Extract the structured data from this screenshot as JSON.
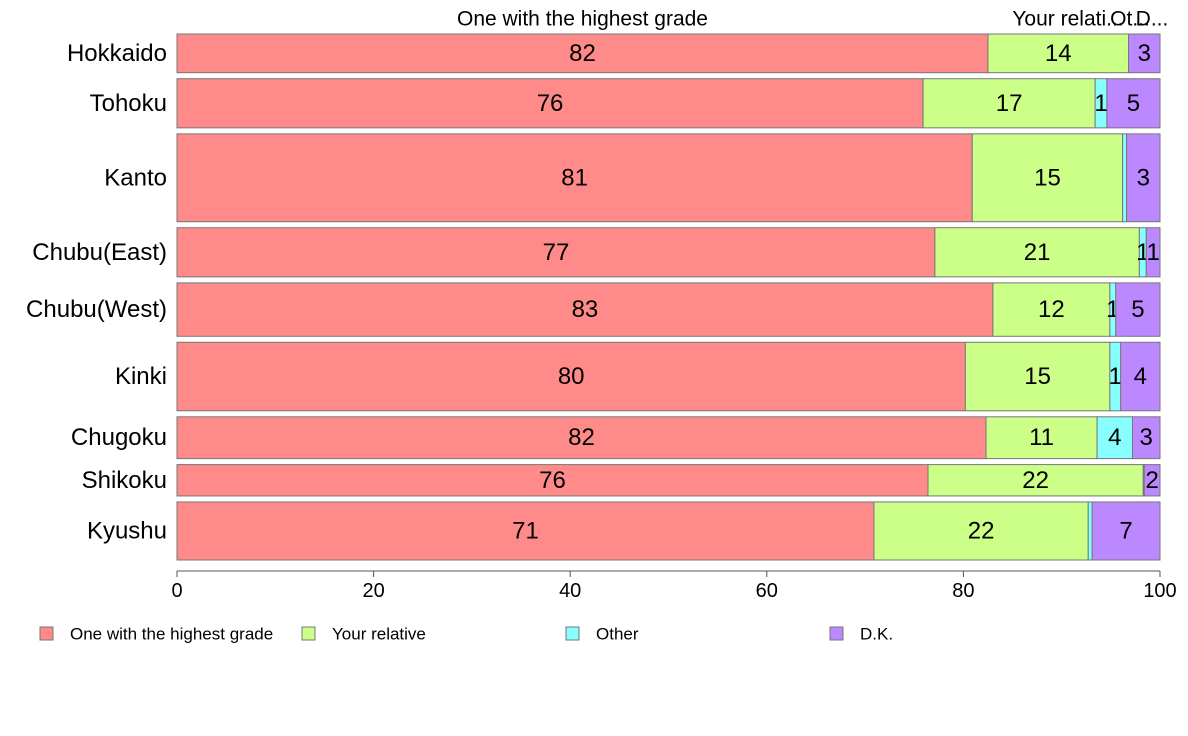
{
  "chart_data": {
    "type": "bar",
    "orientation": "horizontal",
    "stacked": true,
    "categories": [
      "Hokkaido",
      "Tohoku",
      "Kanto",
      "Chubu(East)",
      "Chubu(West)",
      "Kinki",
      "Chugoku",
      "Shikoku",
      "Kyushu"
    ],
    "series": [
      {
        "name": "One with the highest grade",
        "color": "#ff8a8a",
        "values": [
          82.5,
          75.9,
          80.9,
          77.1,
          83.0,
          80.2,
          82.3,
          76.4,
          70.9
        ],
        "labels": [
          "82",
          "76",
          "81",
          "77",
          "83",
          "80",
          "82",
          "76",
          "71"
        ]
      },
      {
        "name": "Your relative",
        "color": "#ccff88",
        "values": [
          14.3,
          17.5,
          15.3,
          20.8,
          11.9,
          14.7,
          11.3,
          21.9,
          21.8
        ],
        "labels": [
          "14",
          "17",
          "15",
          "21",
          "",
          "15",
          "11",
          "22",
          "22"
        ]
      },
      {
        "name": "Other",
        "color": "#88ffff",
        "values": [
          0.0,
          1.2,
          0.4,
          0.7,
          0.6,
          1.1,
          3.6,
          0.1,
          0.4
        ],
        "labels": [
          "",
          "1",
          "",
          "1",
          "1",
          "1",
          "4",
          "",
          ""
        ]
      },
      {
        "name": "D.K.",
        "color": "#bb88ff",
        "values": [
          3.2,
          5.4,
          3.4,
          1.4,
          4.5,
          4.0,
          2.8,
          1.6,
          6.9
        ],
        "labels": [
          "3",
          "5",
          "3",
          "1",
          "5",
          "4",
          "3",
          "2",
          "7"
        ]
      }
    ],
    "chubu_west_relative_label": "12",
    "header_labels": [
      "One with the highest grade",
      "Your relati...",
      "Ot...",
      "D..."
    ],
    "xlim": [
      0,
      100
    ],
    "xticks": [
      "0",
      "20",
      "40",
      "60",
      "80",
      "100"
    ],
    "row_heights": [
      1.0,
      1.27,
      2.27,
      1.27,
      1.38,
      1.77,
      1.08,
      0.81,
      1.5
    ],
    "legend_position": "bottom-left",
    "title": "",
    "xlabel": "",
    "ylabel": ""
  }
}
